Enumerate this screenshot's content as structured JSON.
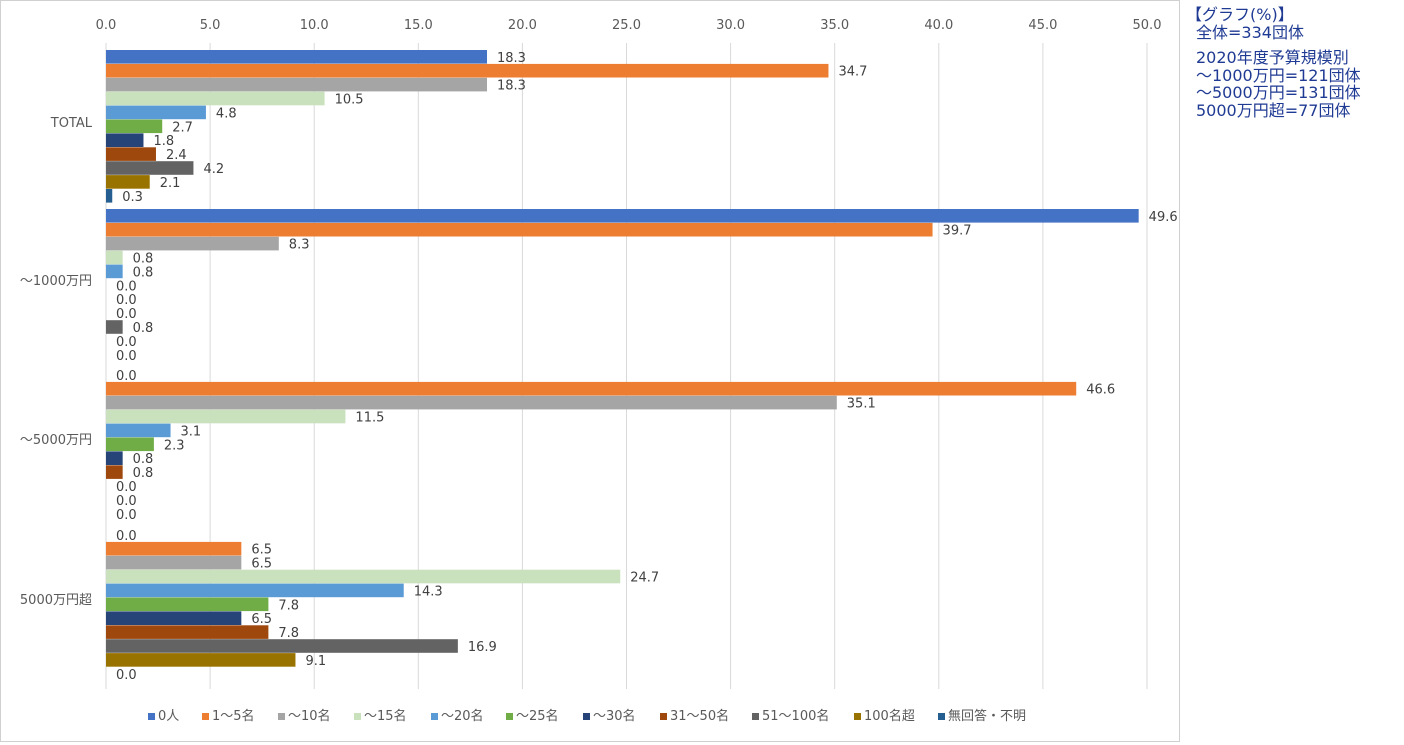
{
  "notes": {
    "title": "【グラフ(%)】",
    "total": "全体=334団体",
    "budget_heading": "2020年度予算規模別",
    "lines": [
      "～1000万円=121団体",
      "～5000万円=131団体",
      "5000万円超=77団体"
    ]
  },
  "colors": {
    "series": [
      "#4472c4",
      "#ed7d31",
      "#a5a5a5",
      "#c9e2bd",
      "#5b9bd5",
      "#70ad47",
      "#264478",
      "#9e480e",
      "#636363",
      "#997300",
      "#255e91"
    ],
    "grid": "#d9d9d9",
    "axis_text": "#595959",
    "label_text": "#404040",
    "note_text": "#1f3a93"
  },
  "chart_data": {
    "type": "bar",
    "orientation": "horizontal",
    "categories": [
      "TOTAL",
      "～1000万円",
      "～5000万円",
      "5000万円超"
    ],
    "xlim": [
      0,
      50
    ],
    "xticks": [
      "0.0",
      "5.0",
      "10.0",
      "15.0",
      "20.0",
      "25.0",
      "30.0",
      "35.0",
      "40.0",
      "45.0",
      "50.0"
    ],
    "grid": true,
    "legend_position": "bottom",
    "series": [
      {
        "name": "0人",
        "values": [
          18.3,
          49.6,
          0.0,
          0.0
        ]
      },
      {
        "name": "1～5名",
        "values": [
          34.7,
          39.7,
          46.6,
          6.5
        ]
      },
      {
        "name": "～10名",
        "values": [
          18.3,
          8.3,
          35.1,
          6.5
        ]
      },
      {
        "name": "～15名",
        "values": [
          10.5,
          0.8,
          11.5,
          24.7
        ]
      },
      {
        "name": "～20名",
        "values": [
          4.8,
          0.8,
          3.1,
          14.3
        ]
      },
      {
        "name": "～25名",
        "values": [
          2.7,
          0.0,
          2.3,
          7.8
        ]
      },
      {
        "name": "～30名",
        "values": [
          1.8,
          0.0,
          0.8,
          6.5
        ]
      },
      {
        "name": "31～50名",
        "values": [
          2.4,
          0.0,
          0.8,
          7.8
        ]
      },
      {
        "name": "51～100名",
        "values": [
          4.2,
          0.8,
          0.0,
          16.9
        ]
      },
      {
        "name": "100名超",
        "values": [
          2.1,
          0.0,
          0.0,
          9.1
        ]
      },
      {
        "name": "無回答・不明",
        "values": [
          0.3,
          0.0,
          0.0,
          0.0
        ]
      }
    ]
  }
}
